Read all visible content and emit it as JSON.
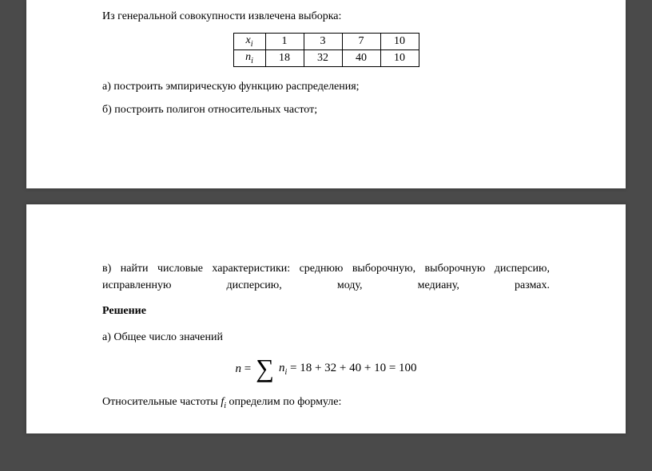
{
  "intro": "Из генеральной совокупности извлечена выборка:",
  "table": {
    "row_x_label": "x",
    "row_n_label": "n",
    "sub": "i",
    "x_values": [
      "1",
      "3",
      "7",
      "10"
    ],
    "n_values": [
      "18",
      "32",
      "40",
      "10"
    ]
  },
  "task_a": "а) построить эмпирическую функцию распределения;",
  "task_b": "б) построить полигон относительных частот;",
  "task_v": "в) найти числовые характеристики: среднюю выборочную, выборочную дисперсию, исправленную дисперсию, моду, медиану, размах.",
  "solution_title": "Решение",
  "sol_a": "а) Общее число значений",
  "formula": {
    "lhs_var": "n",
    "eq1": " = ",
    "sigma": "∑",
    "sum_var": "n",
    "sum_sub": "i",
    "eq2": " = 18 + 32 + 40 + 10 = 100"
  },
  "freq_text_pre": "Относительные частоты ",
  "freq_var": "f",
  "freq_sub": "i",
  "freq_text_post": "  определим по формуле:"
}
